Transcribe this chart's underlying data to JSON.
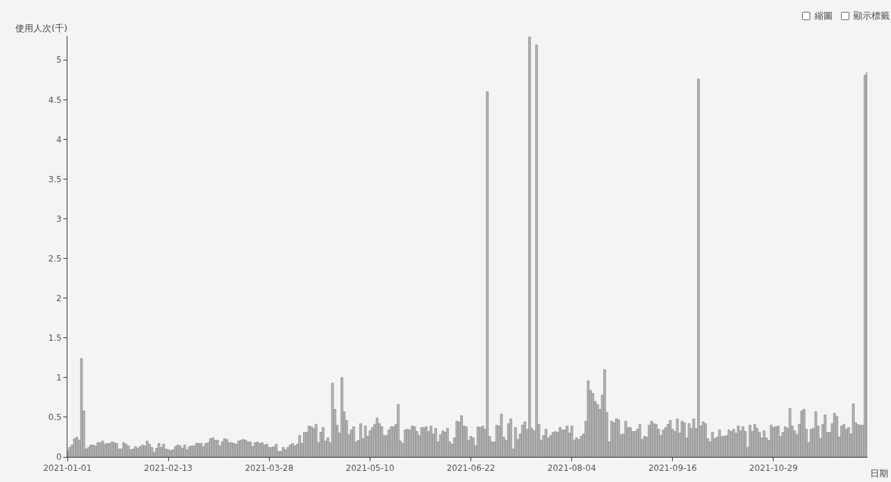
{
  "chart_data": {
    "type": "bar",
    "xlabel": "日期",
    "ylabel": "使用人次(千)",
    "annotations": [
      "縮圖",
      "顯示標籤"
    ],
    "x": [
      "2021-01-01",
      "2021-01-02",
      "2021-01-03",
      "2021-01-04",
      "2021-01-05",
      "2021-01-06",
      "2021-01-07",
      "2021-01-08",
      "2021-01-09",
      "2021-01-10",
      "2021-01-11",
      "2021-01-12",
      "2021-01-13",
      "2021-01-14",
      "2021-01-15",
      "2021-01-16",
      "2021-01-17",
      "2021-01-18",
      "2021-01-19",
      "2021-01-20",
      "2021-01-21",
      "2021-01-22",
      "2021-01-23",
      "2021-01-24",
      "2021-01-25",
      "2021-01-26",
      "2021-01-27",
      "2021-01-28",
      "2021-01-29",
      "2021-01-30",
      "2021-01-31",
      "2021-02-01",
      "2021-02-02",
      "2021-02-03",
      "2021-02-04",
      "2021-02-05",
      "2021-02-06",
      "2021-02-07",
      "2021-02-08",
      "2021-02-09",
      "2021-02-10",
      "2021-02-11",
      "2021-02-12",
      "2021-02-13",
      "2021-02-14",
      "2021-02-15",
      "2021-02-16",
      "2021-02-17",
      "2021-02-18",
      "2021-02-19",
      "2021-02-20",
      "2021-02-21",
      "2021-02-22",
      "2021-02-23",
      "2021-02-24",
      "2021-02-25",
      "2021-02-26",
      "2021-02-27",
      "2021-02-28",
      "2021-03-01",
      "2021-03-02",
      "2021-03-03",
      "2021-03-04",
      "2021-03-05",
      "2021-03-06",
      "2021-03-07",
      "2021-03-08",
      "2021-03-09",
      "2021-03-10",
      "2021-03-11",
      "2021-03-12",
      "2021-03-13",
      "2021-03-14",
      "2021-03-15",
      "2021-03-16",
      "2021-03-17",
      "2021-03-18",
      "2021-03-19",
      "2021-03-20",
      "2021-03-21",
      "2021-03-22",
      "2021-03-23",
      "2021-03-24",
      "2021-03-25",
      "2021-03-26",
      "2021-03-27",
      "2021-03-28",
      "2021-03-29",
      "2021-03-30",
      "2021-03-31",
      "2021-04-01",
      "2021-04-02",
      "2021-04-03",
      "2021-04-04",
      "2021-04-05",
      "2021-04-06",
      "2021-04-07",
      "2021-04-08",
      "2021-04-09",
      "2021-04-10",
      "2021-04-11",
      "2021-04-12",
      "2021-04-13",
      "2021-04-14",
      "2021-04-15",
      "2021-04-16",
      "2021-04-17",
      "2021-04-18",
      "2021-04-19",
      "2021-04-20",
      "2021-04-21",
      "2021-04-22",
      "2021-04-23",
      "2021-04-24",
      "2021-04-25",
      "2021-04-26",
      "2021-04-27",
      "2021-04-28",
      "2021-04-29",
      "2021-04-30",
      "2021-05-01",
      "2021-05-02",
      "2021-05-03",
      "2021-05-04",
      "2021-05-05",
      "2021-05-06",
      "2021-05-07",
      "2021-05-08",
      "2021-05-09",
      "2021-05-10",
      "2021-05-11",
      "2021-05-12",
      "2021-05-13",
      "2021-05-14",
      "2021-05-15",
      "2021-05-16",
      "2021-05-17",
      "2021-05-18",
      "2021-05-19",
      "2021-05-20",
      "2021-05-21",
      "2021-05-22",
      "2021-05-23",
      "2021-05-24",
      "2021-05-25",
      "2021-05-26",
      "2021-05-27",
      "2021-05-28",
      "2021-05-29",
      "2021-05-30",
      "2021-05-31",
      "2021-06-01",
      "2021-06-02",
      "2021-06-03",
      "2021-06-04",
      "2021-06-05",
      "2021-06-06",
      "2021-06-07",
      "2021-06-08",
      "2021-06-09",
      "2021-06-10",
      "2021-06-11",
      "2021-06-12",
      "2021-06-13",
      "2021-06-14",
      "2021-06-15",
      "2021-06-16",
      "2021-06-17",
      "2021-06-18",
      "2021-06-19",
      "2021-06-20",
      "2021-06-21",
      "2021-06-22",
      "2021-06-23",
      "2021-06-24",
      "2021-06-25",
      "2021-06-26",
      "2021-06-27",
      "2021-06-28",
      "2021-06-29",
      "2021-06-30",
      "2021-07-01",
      "2021-07-02",
      "2021-07-03",
      "2021-07-04",
      "2021-07-05",
      "2021-07-06",
      "2021-07-07",
      "2021-07-08",
      "2021-07-09",
      "2021-07-10",
      "2021-07-11",
      "2021-07-12",
      "2021-07-13",
      "2021-07-14",
      "2021-07-15",
      "2021-07-16",
      "2021-07-17",
      "2021-07-18",
      "2021-07-19",
      "2021-07-20",
      "2021-07-21",
      "2021-07-22",
      "2021-07-23",
      "2021-07-24",
      "2021-07-25",
      "2021-07-26",
      "2021-07-27",
      "2021-07-28",
      "2021-07-29",
      "2021-07-30",
      "2021-07-31",
      "2021-08-01",
      "2021-08-02",
      "2021-08-03",
      "2021-08-04",
      "2021-08-05",
      "2021-08-06",
      "2021-08-07",
      "2021-08-08",
      "2021-08-09",
      "2021-08-10",
      "2021-08-11",
      "2021-08-12",
      "2021-08-13",
      "2021-08-14",
      "2021-08-15",
      "2021-08-16",
      "2021-08-17",
      "2021-08-18",
      "2021-08-19",
      "2021-08-20",
      "2021-08-21",
      "2021-08-22",
      "2021-08-23",
      "2021-08-24",
      "2021-08-25",
      "2021-08-26",
      "2021-08-27",
      "2021-08-28",
      "2021-08-29",
      "2021-08-30",
      "2021-08-31",
      "2021-09-01",
      "2021-09-02",
      "2021-09-03",
      "2021-09-04",
      "2021-09-05",
      "2021-09-06",
      "2021-09-07",
      "2021-09-08",
      "2021-09-09",
      "2021-09-10",
      "2021-09-11",
      "2021-09-12",
      "2021-09-13",
      "2021-09-14",
      "2021-09-15",
      "2021-09-16",
      "2021-09-17",
      "2021-09-18",
      "2021-09-19",
      "2021-09-20",
      "2021-09-21",
      "2021-09-22",
      "2021-09-23",
      "2021-09-24",
      "2021-09-25",
      "2021-09-26",
      "2021-09-27",
      "2021-09-28",
      "2021-09-29",
      "2021-09-30",
      "2021-10-01",
      "2021-10-02",
      "2021-10-03",
      "2021-10-04",
      "2021-10-05",
      "2021-10-06",
      "2021-10-07",
      "2021-10-08",
      "2021-10-09",
      "2021-10-10",
      "2021-10-11",
      "2021-10-12",
      "2021-10-13",
      "2021-10-14",
      "2021-10-15",
      "2021-10-16",
      "2021-10-17",
      "2021-10-18",
      "2021-10-19",
      "2021-10-20",
      "2021-10-21",
      "2021-10-22",
      "2021-10-23",
      "2021-10-24",
      "2021-10-25",
      "2021-10-26",
      "2021-10-27",
      "2021-10-28",
      "2021-10-29",
      "2021-10-30",
      "2021-10-31",
      "2021-11-01",
      "2021-11-02",
      "2021-11-03",
      "2021-11-04",
      "2021-11-05",
      "2021-11-06",
      "2021-11-07",
      "2021-11-08",
      "2021-11-09",
      "2021-11-10",
      "2021-11-11",
      "2021-11-12",
      "2021-11-13",
      "2021-11-14",
      "2021-11-15",
      "2021-11-16",
      "2021-11-17",
      "2021-11-18",
      "2021-11-19",
      "2021-11-20",
      "2021-11-21",
      "2021-11-22",
      "2021-11-23",
      "2021-11-24",
      "2021-11-25",
      "2021-11-26",
      "2021-11-27",
      "2021-11-28",
      "2021-11-29",
      "2021-11-30",
      "2021-12-01",
      "2021-12-02",
      "2021-12-03",
      "2021-12-04",
      "2021-12-05",
      "2021-12-06",
      "2021-12-07",
      "2021-12-08"
    ],
    "values": [
      0.08,
      0.12,
      0.15,
      0.23,
      0.25,
      0.21,
      1.24,
      0.58,
      0.1,
      0.12,
      0.15,
      0.15,
      0.14,
      0.18,
      0.18,
      0.2,
      0.16,
      0.17,
      0.17,
      0.19,
      0.18,
      0.17,
      0.1,
      0.1,
      0.18,
      0.16,
      0.14,
      0.09,
      0.1,
      0.13,
      0.11,
      0.13,
      0.15,
      0.14,
      0.2,
      0.16,
      0.12,
      0.06,
      0.11,
      0.17,
      0.12,
      0.16,
      0.1,
      0.09,
      0.08,
      0.09,
      0.13,
      0.15,
      0.14,
      0.11,
      0.15,
      0.09,
      0.13,
      0.14,
      0.14,
      0.17,
      0.17,
      0.17,
      0.13,
      0.17,
      0.18,
      0.23,
      0.24,
      0.21,
      0.21,
      0.14,
      0.19,
      0.23,
      0.22,
      0.18,
      0.18,
      0.17,
      0.16,
      0.2,
      0.21,
      0.22,
      0.21,
      0.19,
      0.19,
      0.13,
      0.18,
      0.19,
      0.17,
      0.18,
      0.15,
      0.16,
      0.12,
      0.12,
      0.13,
      0.16,
      0.07,
      0.07,
      0.12,
      0.09,
      0.12,
      0.15,
      0.17,
      0.14,
      0.16,
      0.27,
      0.17,
      0.31,
      0.31,
      0.39,
      0.38,
      0.36,
      0.41,
      0.18,
      0.31,
      0.37,
      0.2,
      0.24,
      0.18,
      0.93,
      0.6,
      0.4,
      0.3,
      1.0,
      0.57,
      0.46,
      0.28,
      0.34,
      0.38,
      0.19,
      0.21,
      0.42,
      0.23,
      0.39,
      0.26,
      0.33,
      0.37,
      0.41,
      0.49,
      0.42,
      0.38,
      0.27,
      0.27,
      0.34,
      0.38,
      0.38,
      0.41,
      0.66,
      0.2,
      0.17,
      0.34,
      0.35,
      0.34,
      0.39,
      0.38,
      0.32,
      0.27,
      0.37,
      0.37,
      0.38,
      0.32,
      0.39,
      0.29,
      0.36,
      0.19,
      0.28,
      0.33,
      0.31,
      0.36,
      0.19,
      0.16,
      0.24,
      0.45,
      0.44,
      0.52,
      0.39,
      0.38,
      0.21,
      0.26,
      0.24,
      0.14,
      0.38,
      0.37,
      0.39,
      0.35,
      4.6,
      0.26,
      0.19,
      0.19,
      0.4,
      0.39,
      0.54,
      0.25,
      0.21,
      0.42,
      0.48,
      0.1,
      0.37,
      0.22,
      0.29,
      0.4,
      0.44,
      0.35,
      5.29,
      0.36,
      0.33,
      5.19,
      0.41,
      0.21,
      0.27,
      0.35,
      0.24,
      0.27,
      0.31,
      0.32,
      0.31,
      0.37,
      0.34,
      0.34,
      0.39,
      0.3,
      0.39,
      0.21,
      0.24,
      0.22,
      0.26,
      0.29,
      0.45,
      0.96,
      0.84,
      0.8,
      0.7,
      0.66,
      0.6,
      0.78,
      1.1,
      0.56,
      0.19,
      0.45,
      0.43,
      0.48,
      0.47,
      0.28,
      0.29,
      0.45,
      0.37,
      0.37,
      0.32,
      0.32,
      0.35,
      0.41,
      0.22,
      0.26,
      0.25,
      0.4,
      0.45,
      0.42,
      0.41,
      0.35,
      0.27,
      0.34,
      0.37,
      0.41,
      0.46,
      0.35,
      0.32,
      0.48,
      0.3,
      0.45,
      0.43,
      0.24,
      0.42,
      0.36,
      0.48,
      0.36,
      4.76,
      0.39,
      0.44,
      0.42,
      0.23,
      0.19,
      0.31,
      0.23,
      0.25,
      0.34,
      0.26,
      0.26,
      0.27,
      0.34,
      0.32,
      0.35,
      0.3,
      0.39,
      0.33,
      0.38,
      0.32,
      0.12,
      0.4,
      0.32,
      0.41,
      0.36,
      0.31,
      0.24,
      0.33,
      0.24,
      0.21,
      0.4,
      0.37,
      0.38,
      0.39,
      0.26,
      0.31,
      0.38,
      0.36,
      0.61,
      0.39,
      0.33,
      0.28,
      0.41,
      0.58,
      0.6,
      0.35,
      0.18,
      0.35,
      0.36,
      0.57,
      0.39,
      0.23,
      0.41,
      0.53,
      0.31,
      0.31,
      0.42,
      0.55,
      0.51,
      0.25,
      0.39,
      0.41,
      0.35,
      0.37,
      0.29,
      0.67,
      0.43,
      0.41,
      0.4,
      0.4,
      4.81,
      4.84
    ],
    "color": "#b5b5b5",
    "xlim": [
      "2021-01-01",
      "2021-12-08"
    ],
    "xticks": [
      {
        "value": "2021-01-01",
        "label": "2021-01-01"
      },
      {
        "value": "2021-02-13",
        "label": "2021-02-13"
      },
      {
        "value": "2021-03-28",
        "label": "2021-03-28"
      },
      {
        "value": "2021-05-10",
        "label": "2021-05-10"
      },
      {
        "value": "2021-06-22",
        "label": "2021-06-22"
      },
      {
        "value": "2021-08-04",
        "label": "2021-08-04"
      },
      {
        "value": "2021-09-16",
        "label": "2021-09-16"
      },
      {
        "value": "2021-10-29",
        "label": "2021-10-29"
      }
    ],
    "ylim": [
      0,
      5.3
    ],
    "yticks": [
      0,
      0.5,
      1,
      1.5,
      2,
      2.5,
      3,
      3.5,
      4,
      4.5,
      5
    ],
    "grid": false
  }
}
